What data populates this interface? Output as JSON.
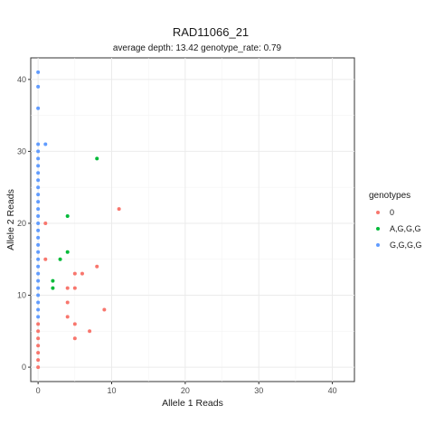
{
  "chart_data": {
    "type": "scatter",
    "title": "RAD11066_21",
    "subtitle": "average depth:  13.42  genotype_rate:  0.79",
    "xlabel": "Allele 1 Reads",
    "ylabel": "Allele 2 Reads",
    "xlim": [
      -1,
      43
    ],
    "ylim": [
      -2,
      43
    ],
    "x_ticks": [
      0,
      10,
      20,
      30,
      40
    ],
    "y_ticks": [
      0,
      10,
      20,
      30,
      40
    ],
    "grid": true,
    "legend": {
      "title": "genotypes",
      "position": "right"
    },
    "series": [
      {
        "name": "0",
        "color": "#F8766D",
        "points": [
          [
            0,
            0
          ],
          [
            0,
            1
          ],
          [
            0,
            2
          ],
          [
            0,
            3
          ],
          [
            0,
            4
          ],
          [
            0,
            5
          ],
          [
            0,
            6
          ],
          [
            1,
            15
          ],
          [
            1,
            20
          ],
          [
            4,
            7
          ],
          [
            4,
            9
          ],
          [
            4,
            11
          ],
          [
            5,
            4
          ],
          [
            5,
            6
          ],
          [
            5,
            11
          ],
          [
            5,
            13
          ],
          [
            6,
            13
          ],
          [
            7,
            5
          ],
          [
            8,
            14
          ],
          [
            9,
            8
          ],
          [
            11,
            22
          ]
        ]
      },
      {
        "name": "A,G,G,G",
        "color": "#00BA38",
        "points": [
          [
            2,
            11
          ],
          [
            2,
            12
          ],
          [
            3,
            15
          ],
          [
            4,
            16
          ],
          [
            4,
            21
          ],
          [
            8,
            29
          ]
        ]
      },
      {
        "name": "G,G,G,G",
        "color": "#619CFF",
        "points": [
          [
            0,
            7
          ],
          [
            0,
            8
          ],
          [
            0,
            9
          ],
          [
            0,
            10
          ],
          [
            0,
            11
          ],
          [
            0,
            12
          ],
          [
            0,
            13
          ],
          [
            0,
            14
          ],
          [
            0,
            15
          ],
          [
            0,
            16
          ],
          [
            0,
            17
          ],
          [
            0,
            18
          ],
          [
            0,
            19
          ],
          [
            0,
            20
          ],
          [
            0,
            21
          ],
          [
            0,
            22
          ],
          [
            0,
            23
          ],
          [
            0,
            24
          ],
          [
            0,
            25
          ],
          [
            0,
            26
          ],
          [
            0,
            27
          ],
          [
            0,
            28
          ],
          [
            0,
            29
          ],
          [
            0,
            30
          ],
          [
            0,
            31
          ],
          [
            0,
            36
          ],
          [
            0,
            39
          ],
          [
            0,
            41
          ],
          [
            1,
            31
          ]
        ]
      }
    ]
  }
}
